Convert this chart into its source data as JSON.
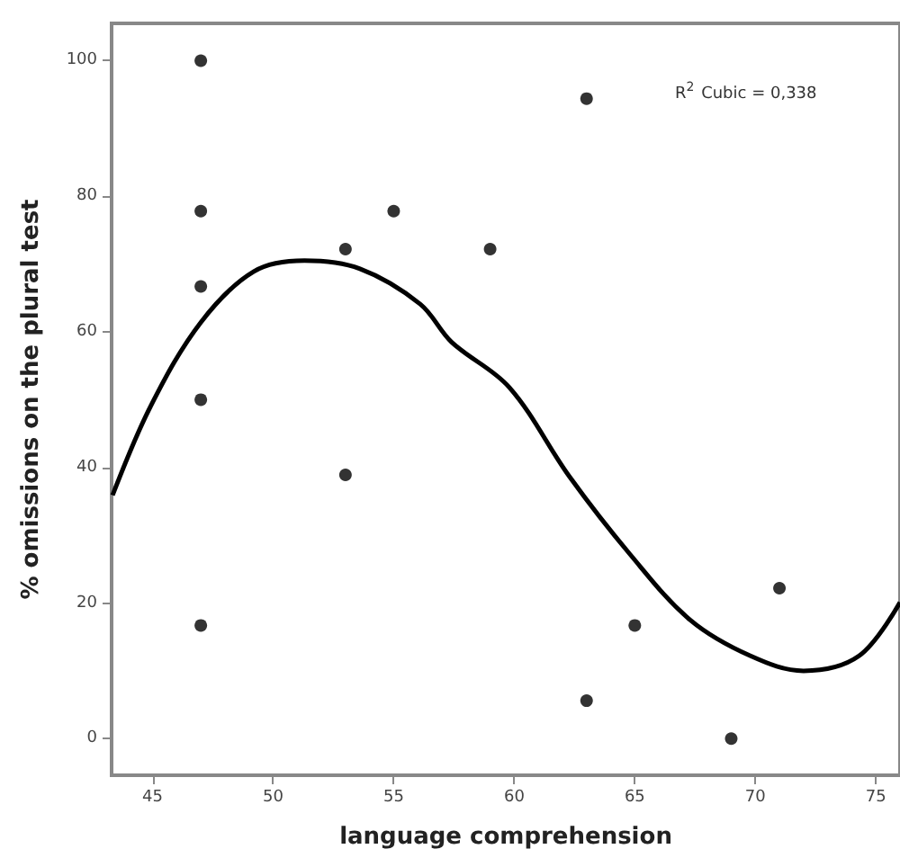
{
  "chart_data": {
    "type": "scatter",
    "xlabel": "language comprehension",
    "ylabel": "% omissions on the plural test",
    "annotations": [
      "R$^{2}$ Cubic = 0,338"
    ],
    "xlim": [
      43.3,
      76
    ],
    "xticks": [
      45,
      50,
      55,
      60,
      65,
      70,
      75
    ],
    "ylim": [
      -5.4,
      105.5
    ],
    "yticks": [
      0,
      20,
      40,
      60,
      80,
      100
    ],
    "grid": false,
    "series": [
      {
        "type": "scatter",
        "marker": "circle",
        "color": "#000000",
        "x": [
          47,
          47,
          47,
          47,
          47,
          53,
          53,
          55,
          59,
          63,
          63,
          65,
          69,
          71
        ],
        "values": [
          100,
          77.8,
          66.7,
          50,
          16.7,
          72.2,
          38.9,
          77.8,
          72.2,
          94.4,
          5.6,
          16.7,
          0,
          22.2
        ]
      },
      {
        "type": "line",
        "marker": "none",
        "color": "#000000",
        "x": [
          43.34,
          44.93,
          47.0,
          49.2,
          51.3,
          53.6,
          56.1,
          57.4,
          59.8,
          62.3,
          64.8,
          67.3,
          69.8,
          72.0,
          74.3,
          76.0
        ],
        "values": [
          35.9,
          49.1,
          61.4,
          68.9,
          70.5,
          69.3,
          64.1,
          58.5,
          51.8,
          38.6,
          27.2,
          17.5,
          12.2,
          10.0,
          12.2,
          20.1
        ]
      }
    ]
  }
}
